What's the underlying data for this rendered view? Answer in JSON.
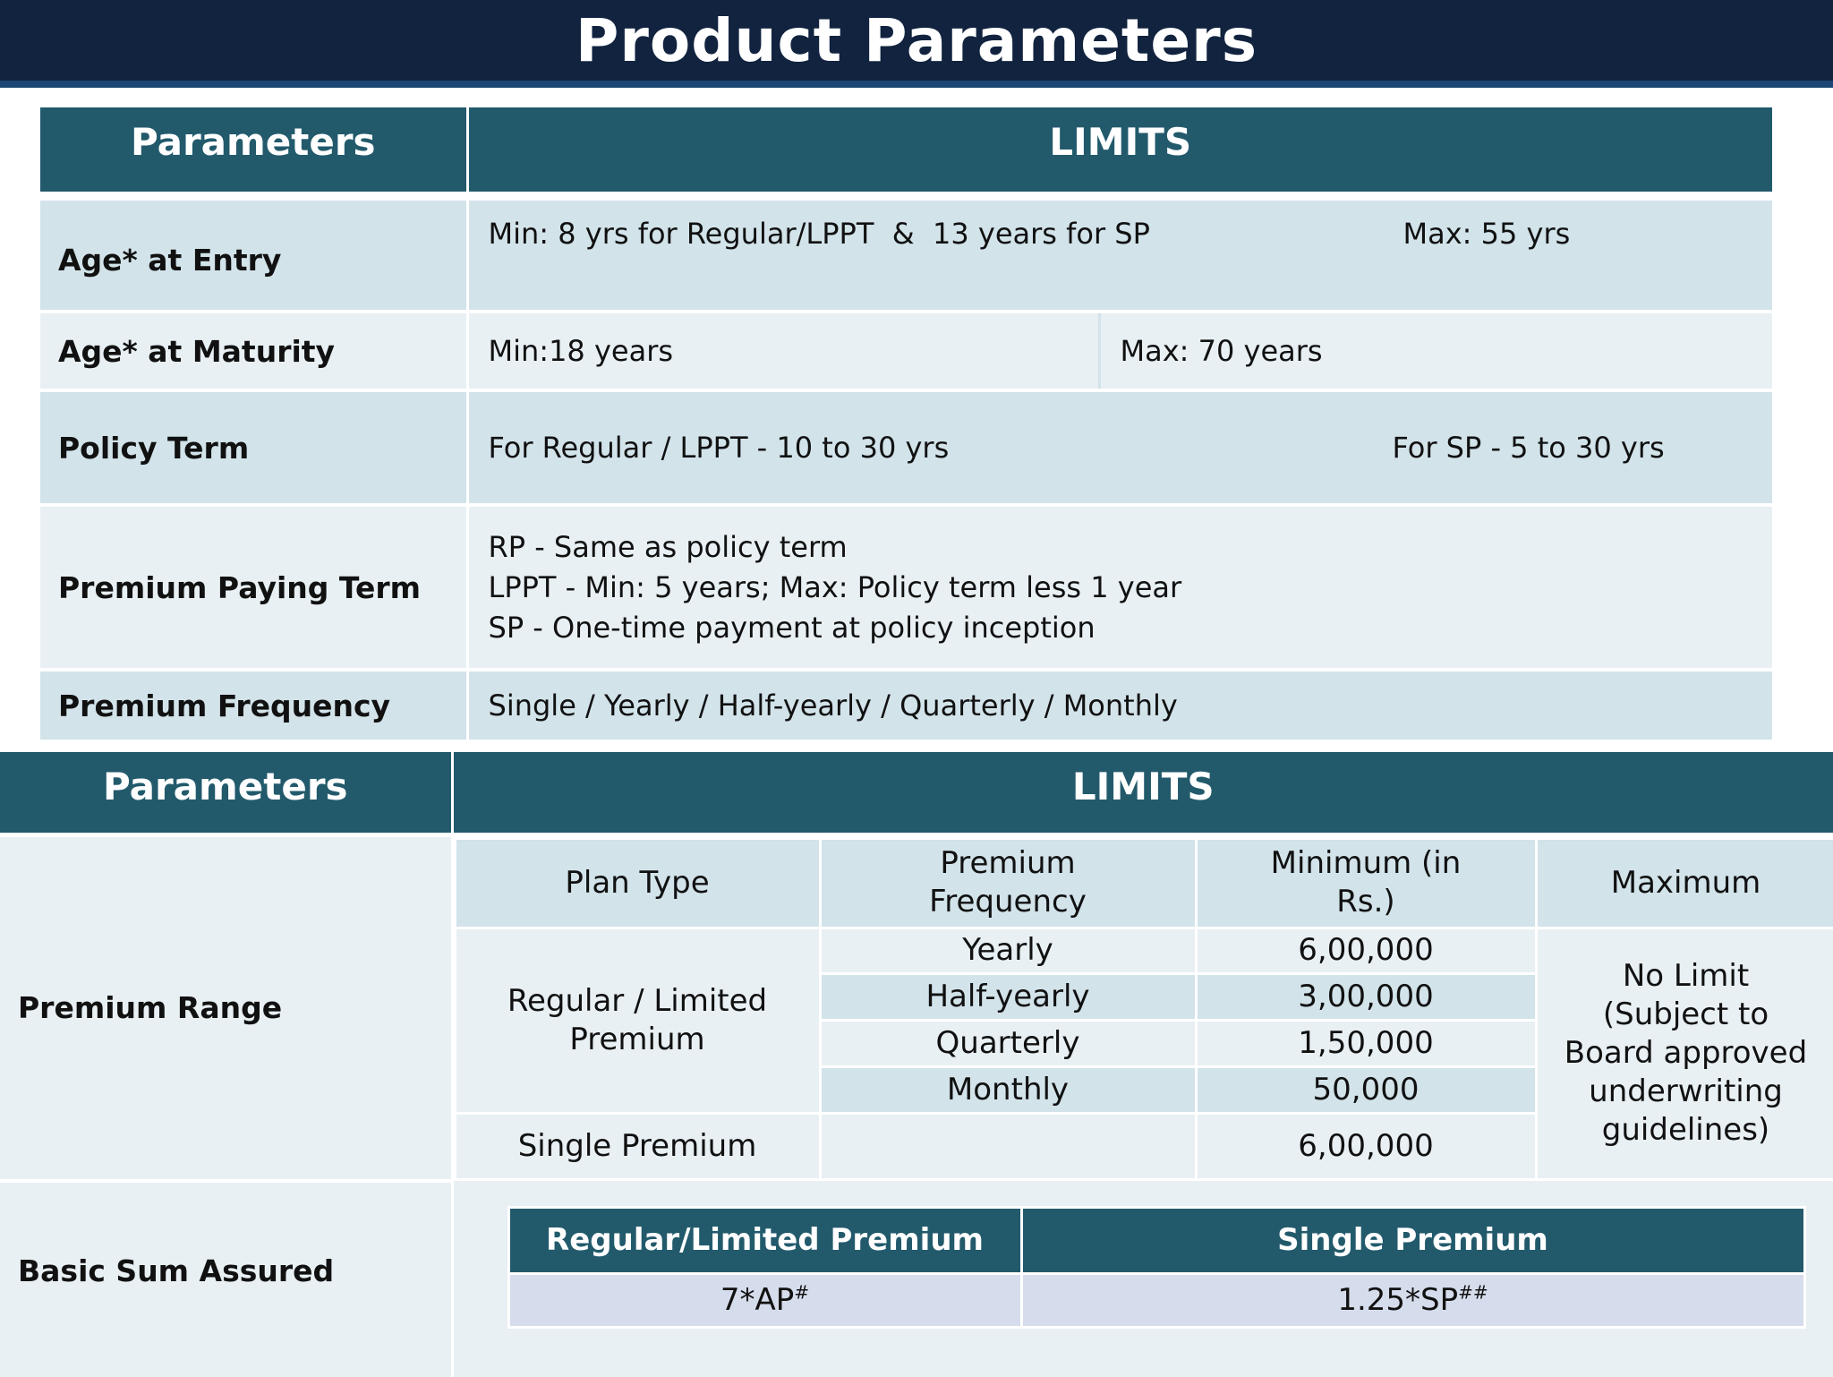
{
  "title": "Product Parameters",
  "table1": {
    "header_param": "Parameters",
    "header_limits": "LIMITS",
    "age_entry": {
      "label": "Age* at Entry",
      "min": "Min: 8 yrs for Regular/LPPT  &  13 years for SP",
      "max": "Max: 55 yrs"
    },
    "age_maturity": {
      "label": "Age* at Maturity",
      "min": "Min:18 years",
      "max": "Max: 70 years"
    },
    "policy_term": {
      "label": "Policy Term",
      "regular": "For Regular / LPPT - 10 to 30 yrs",
      "sp": "For SP - 5 to 30 yrs"
    },
    "premium_paying_term": {
      "label": "Premium Paying Term",
      "lines": [
        "RP - Same as policy term",
        "LPPT - Min: 5 years; Max: Policy term less 1 year",
        "SP - One-time payment at policy inception"
      ]
    },
    "premium_frequency": {
      "label": "Premium Frequency",
      "value": "Single / Yearly / Half-yearly / Quarterly / Monthly"
    }
  },
  "table2": {
    "header_param": "Parameters",
    "header_limits": "LIMITS",
    "premium_range": {
      "label": "Premium Range",
      "col_plan": "Plan Type",
      "col_freq": "Premium Frequency",
      "col_min": "Minimum (in Rs.)",
      "col_max": "Maximum",
      "plan_regular": "Regular / Limited Premium",
      "plan_single": "Single Premium",
      "rows": [
        {
          "freq": "Yearly",
          "min": "6,00,000"
        },
        {
          "freq": "Half-yearly",
          "min": "3,00,000"
        },
        {
          "freq": "Quarterly",
          "min": "1,50,000"
        },
        {
          "freq": "Monthly",
          "min": "50,000"
        }
      ],
      "single_min": "6,00,000",
      "maximum": "No Limit (Subject to Board approved underwriting guidelines)"
    },
    "basic_sum_assured": {
      "label": "Basic Sum Assured",
      "col_regular": "Regular/Limited Premium",
      "col_single": "Single Premium",
      "regular_value": "7*AP",
      "regular_sup": "#",
      "single_value": "1.25*SP",
      "single_sup": "##"
    }
  },
  "colors": {
    "title_bg": "#11233f",
    "header_bg": "#225a6c",
    "row_dark": "#d2e3ea",
    "row_light": "#e8f0f4",
    "sum_value_bg": "#d5dcec"
  }
}
